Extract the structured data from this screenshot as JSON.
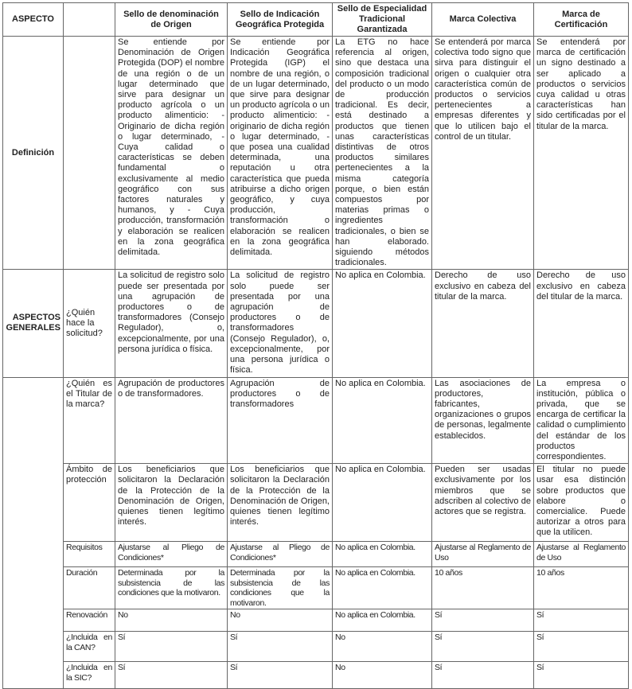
{
  "headers": [
    "ASPECTO",
    "",
    "Sello de denominación de Origen",
    "Sello de Indicación Geográfica Protegida",
    "Sello de Especialidad Tradicional Garantizada",
    "Marca Colectiva",
    "Marca de Certificación"
  ],
  "definicion": {
    "label": "Definición",
    "cells": [
      "Se entiende por Denominación de Origen Protegida (DOP) el nombre de una región o de un lugar determinado que sirve para designar un producto agrícola o un producto alimenticio: - Originario de dicha región o lugar determinado, - Cuya calidad o características se deben fundamental o exclusivamente al medio geográfico con sus factores naturales y humanos, y - Cuya producción, transformación y elaboración se realicen en la zona geográfica delimitada.",
      "Se entiende por Indicación Geográfica Protegida (IGP) el nombre de una región, o de un lugar determinado, que sirve para designar un producto agrícola o un producto alimenticio: - originario de dicha región o lugar determinado, - que posea una cualidad determinada, una reputación u otra característica que pueda atribuirse a dicho origen geográfico, y cuya producción, transformación o elaboración se realicen en la zona geográfica delimitada.",
      "La ETG no hace referencia al origen, sino que destaca una composición tradicional del producto o un modo de producción tradicional. Es decir, está destinado a productos que tienen unas características distintivas de otros productos similares pertenecientes a la misma categoría porque, o bien están compuestos por materias primas o ingredientes tradicionales, o bien se han elaborado. siguiendo métodos tradicionales.",
      "Se entenderá por marca colectiva todo signo que sirva para distinguir el origen o cualquier otra característica común de productos o servicios pertenecientes a empresas diferentes y que lo utilicen bajo el control de un titular.",
      "Se entenderá por marca de certificación un signo destinado a ser aplicado a productos o servicios cuya calidad u otras características han sido certificadas por el titular de la marca."
    ]
  },
  "aspectos_generales": {
    "label": "ASPECTOS GENERALES",
    "rows": [
      {
        "label": "¿Quién hace la solicitud?",
        "cells": [
          "La solicitud de registro solo puede ser presentada por una agrupación de productores o de transformadores (Consejo Regulador), o, excepcionalmente, por una persona jurídica o física.",
          "La solicitud de registro solo puede ser presentada por una agrupación de productores o de transformadores (Consejo Regulador), o, excepcionalmente, por una persona jurídica o física.",
          "No aplica en Colombia.",
          "Derecho de uso exclusivo en cabeza del titular de la marca.",
          "Derecho de uso exclusivo en cabeza del titular de la marca."
        ]
      },
      {
        "label": "¿Quién es el Titular de la marca?",
        "cells": [
          "Agrupación de productores o de transformadores.",
          "Agrupación de productores o de transformadores",
          "No aplica en Colombia.",
          "Las asociaciones de productores, fabricantes, organizaciones o grupos de personas, legalmente establecidos.",
          "La empresa o institución, pública o privada, que se encarga de certificar la calidad o cumplimiento del estándar de los productos correspondientes."
        ]
      },
      {
        "label": "Ámbito de protección",
        "cells": [
          "Los beneficiarios que solicitaron la Declaración de la Protección de la Denominación de Origen, quienes tienen legítimo interés.",
          "Los beneficiarios que solicitaron la Declaración de la Protección de la Denominación de Origen, quienes tienen legítimo interés.",
          "No aplica en Colombia.",
          "Pueden ser usadas exclusivamente por los miembros que se adscriben al colectivo de actores que se registra.",
          "El titular no puede usar esa distinción sobre productos que elabore o comercialice. Puede autorizar a otros para que la utilicen."
        ]
      },
      {
        "label": "Requisitos",
        "cells": [
          "Ajustarse al Pliego de Condiciones*",
          "Ajustarse al Pliego de Condiciones*",
          "No aplica en Colombia.",
          "Ajustarse al Reglamento de Uso",
          "Ajustarse al Reglamento de Uso"
        ]
      },
      {
        "label": "Duración",
        "cells": [
          "Determinada por la subsistencia de las condiciones que la motivaron.",
          "Determinada por la subsistencia de las condiciones que la motivaron.",
          "No aplica en Colombia.",
          "10 años",
          "10 años"
        ]
      },
      {
        "label": "Renovación",
        "cells": [
          "No",
          "No",
          "No aplica en Colombia.",
          "Sí",
          "Sí"
        ]
      },
      {
        "label": "¿Incluida en la CAN?",
        "cells": [
          "Sí",
          "Sí",
          "No",
          "Sí",
          "Sí"
        ]
      },
      {
        "label": "¿Incluida en la SIC?",
        "cells": [
          "Sí",
          "Sí",
          "No",
          "Sí",
          "Sí"
        ]
      }
    ]
  }
}
